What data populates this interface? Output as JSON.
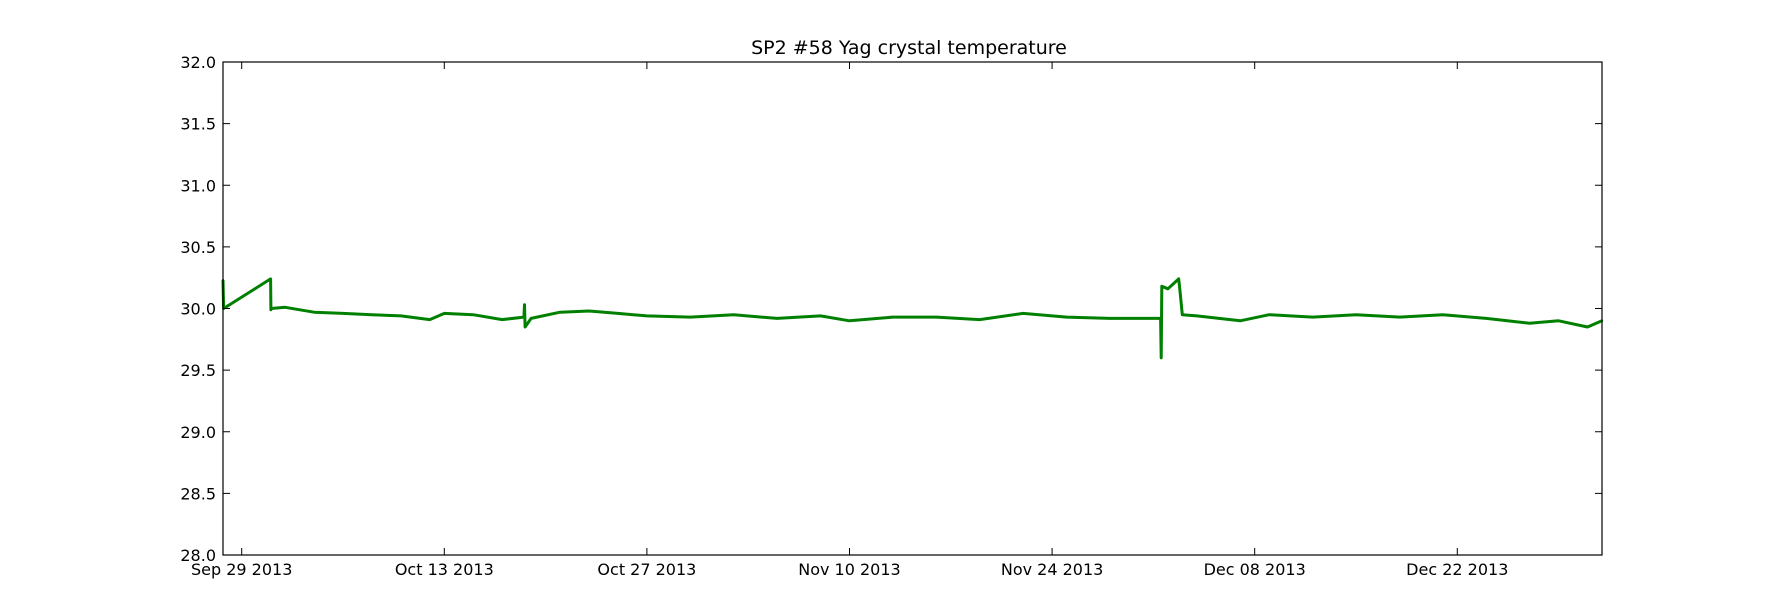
{
  "chart_data": {
    "type": "line",
    "title": "SP2 #58 Yag crystal temperature",
    "xlabel": "",
    "ylabel": "",
    "x_range": [
      "2013-09-27T17:00",
      "2014-01-01T00:00"
    ],
    "ylim": [
      28.0,
      32.0
    ],
    "y_ticks": [
      28.0,
      28.5,
      29.0,
      29.5,
      30.0,
      30.5,
      31.0,
      31.5,
      32.0
    ],
    "y_tick_labels": [
      "28.0",
      "28.5",
      "29.0",
      "29.5",
      "30.0",
      "30.5",
      "31.0",
      "31.5",
      "32.0"
    ],
    "x_ticks": [
      "2013-09-29",
      "2013-10-13",
      "2013-10-27",
      "2013-11-10",
      "2013-11-24",
      "2013-12-08",
      "2013-12-22"
    ],
    "x_tick_labels": [
      "Sep 29 2013",
      "Oct 13 2013",
      "Oct 27 2013",
      "Nov 10 2013",
      "Nov 24 2013",
      "Dec 08 2013",
      "Dec 22 2013"
    ],
    "grid": false,
    "legend": "none",
    "series": [
      {
        "color": "#008000",
        "x": [
          "2013-09-27T17:00",
          "2013-09-27T18:00",
          "2013-10-01T00:00",
          "2013-10-01T00:30",
          "2013-10-01T01:00",
          "2013-10-02T00:00",
          "2013-10-04T00:00",
          "2013-10-06T00:00",
          "2013-10-08T00:00",
          "2013-10-10T00:00",
          "2013-10-12T00:00",
          "2013-10-13T00:00",
          "2013-10-15T00:00",
          "2013-10-17T00:00",
          "2013-10-18T12:00",
          "2013-10-18T13:00",
          "2013-10-18T14:00",
          "2013-10-19T00:00",
          "2013-10-21T00:00",
          "2013-10-23T00:00",
          "2013-10-25T00:00",
          "2013-10-27T00:00",
          "2013-10-30T00:00",
          "2013-11-02T00:00",
          "2013-11-05T00:00",
          "2013-11-08T00:00",
          "2013-11-10T00:00",
          "2013-11-13T00:00",
          "2013-11-16T00:00",
          "2013-11-19T00:00",
          "2013-11-22T00:00",
          "2013-11-25T00:00",
          "2013-11-28T00:00",
          "2013-12-01T12:00",
          "2013-12-01T13:00",
          "2013-12-01T14:00",
          "2013-12-02T00:00",
          "2013-12-02T18:00",
          "2013-12-02T20:00",
          "2013-12-03T00:00",
          "2013-12-04T00:00",
          "2013-12-07T00:00",
          "2013-12-09T00:00",
          "2013-12-12T00:00",
          "2013-12-15T00:00",
          "2013-12-18T00:00",
          "2013-12-21T00:00",
          "2013-12-24T00:00",
          "2013-12-27T00:00",
          "2013-12-29T00:00",
          "2013-12-31T00:00",
          "2014-01-01T00:00"
        ],
        "y": [
          30.23,
          30.0,
          30.24,
          29.99,
          30.0,
          30.01,
          29.97,
          29.96,
          29.95,
          29.94,
          29.91,
          29.96,
          29.95,
          29.91,
          29.93,
          30.03,
          29.85,
          29.92,
          29.97,
          29.98,
          29.96,
          29.94,
          29.93,
          29.95,
          29.92,
          29.94,
          29.9,
          29.93,
          29.93,
          29.91,
          29.96,
          29.93,
          29.92,
          29.92,
          29.6,
          30.18,
          30.16,
          30.24,
          30.15,
          29.95,
          29.94,
          29.9,
          29.95,
          29.93,
          29.95,
          29.93,
          29.95,
          29.92,
          29.88,
          29.9,
          29.85,
          29.9
        ]
      }
    ]
  }
}
